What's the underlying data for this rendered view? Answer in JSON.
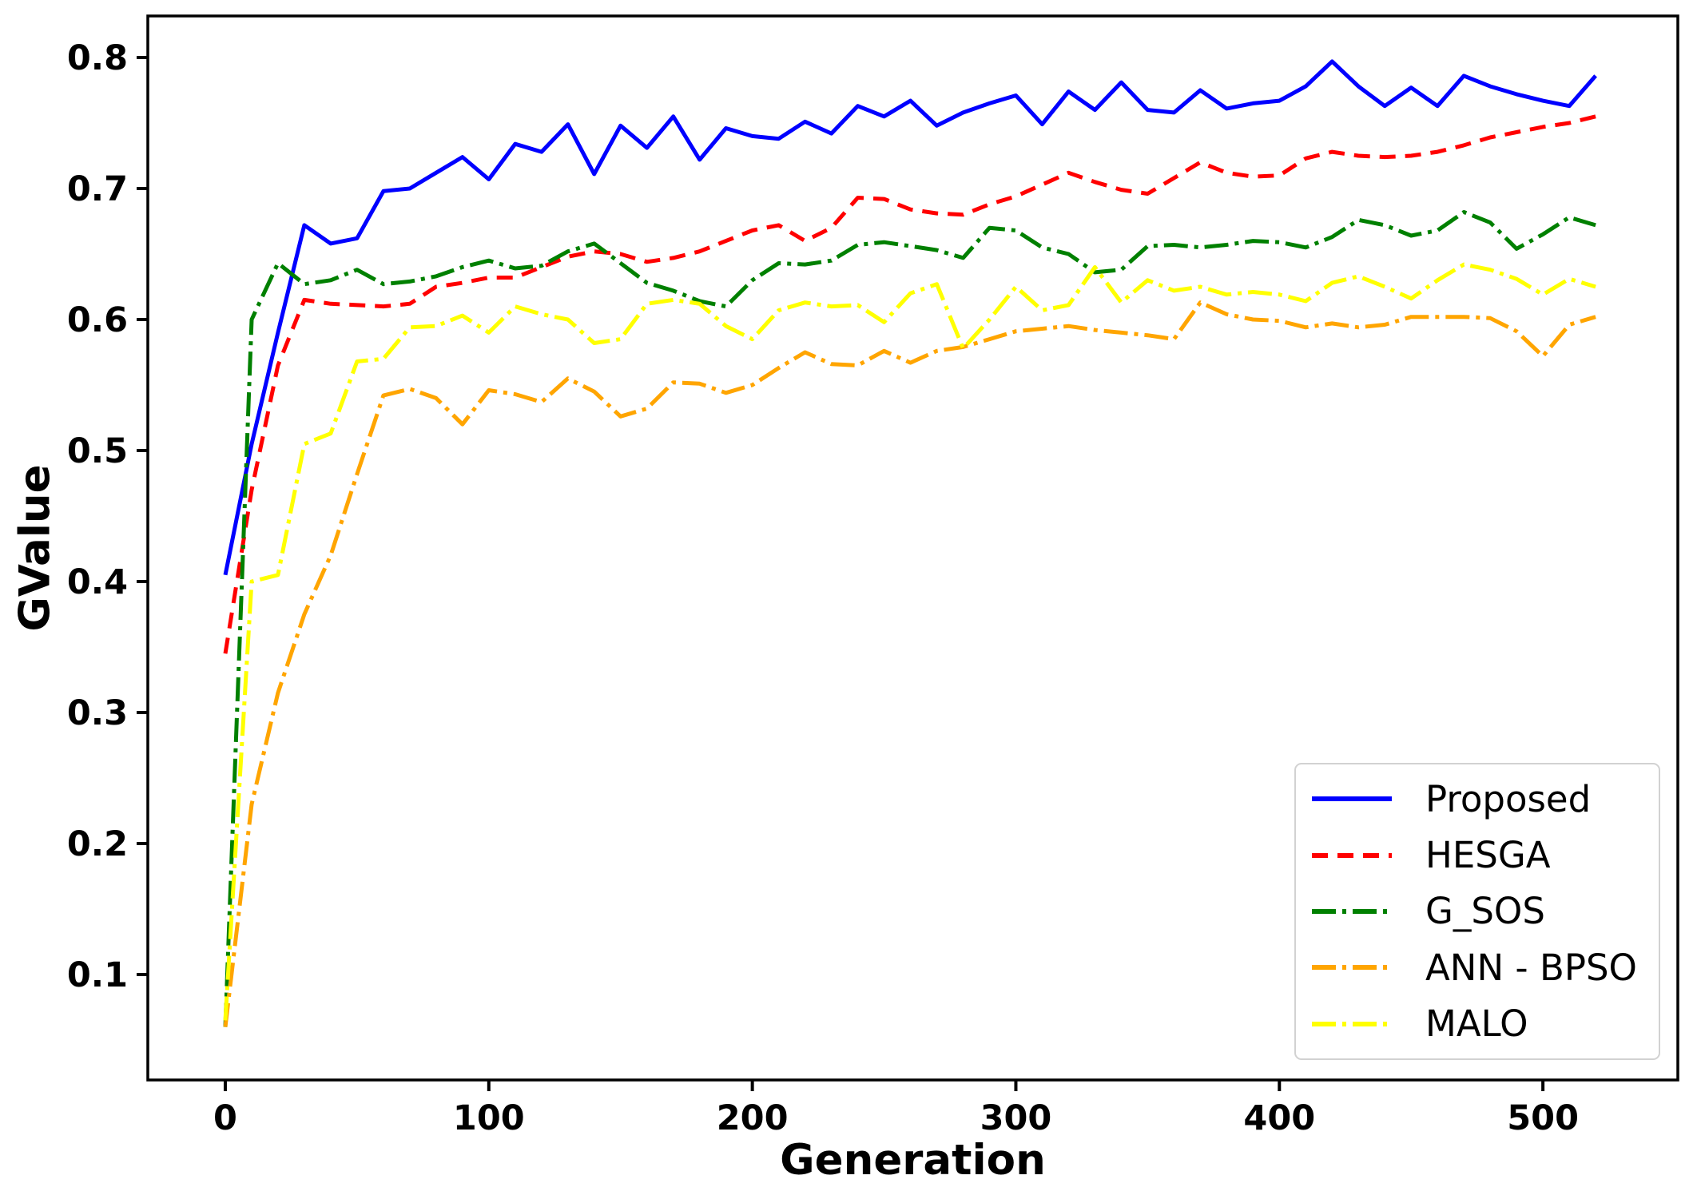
{
  "chart_data": {
    "type": "line",
    "title": "",
    "xlabel": "Generation",
    "ylabel": "GValue",
    "xlim": [
      -29.4,
      551.2
    ],
    "ylim": [
      0.0195,
      0.8317
    ],
    "xticks": {
      "values": [
        0,
        100,
        200,
        300,
        400,
        500
      ],
      "labels": [
        "0",
        "100",
        "200",
        "300",
        "400",
        "500"
      ]
    },
    "yticks": {
      "values": [
        0.1,
        0.2,
        0.3,
        0.4,
        0.5,
        0.6,
        0.7,
        0.8
      ],
      "labels": [
        "0.1",
        "0.2",
        "0.3",
        "0.4",
        "0.5",
        "0.6",
        "0.7",
        "0.8"
      ]
    },
    "grid": false,
    "legend_position": "lower right",
    "x": [
      0,
      10,
      20,
      30,
      40,
      50,
      60,
      70,
      80,
      90,
      100,
      110,
      120,
      130,
      140,
      150,
      160,
      170,
      180,
      190,
      200,
      210,
      220,
      230,
      240,
      250,
      260,
      270,
      280,
      290,
      300,
      310,
      320,
      330,
      340,
      350,
      360,
      370,
      380,
      390,
      400,
      410,
      420,
      430,
      440,
      450,
      460,
      470,
      480,
      490,
      500,
      510,
      520
    ],
    "series": [
      {
        "name": "Proposed",
        "color": "#0000ff",
        "line_style": "solid",
        "values": [
          0.405,
          0.505,
          0.59,
          0.672,
          0.658,
          0.662,
          0.698,
          0.7,
          0.712,
          0.724,
          0.707,
          0.734,
          0.728,
          0.749,
          0.711,
          0.748,
          0.731,
          0.755,
          0.722,
          0.746,
          0.74,
          0.738,
          0.751,
          0.742,
          0.763,
          0.755,
          0.767,
          0.748,
          0.758,
          0.765,
          0.771,
          0.749,
          0.774,
          0.76,
          0.781,
          0.76,
          0.758,
          0.775,
          0.761,
          0.765,
          0.767,
          0.778,
          0.797,
          0.778,
          0.763,
          0.777,
          0.763,
          0.786,
          0.778,
          0.772,
          0.767,
          0.763,
          0.786
        ]
      },
      {
        "name": "HESGA",
        "color": "#ff0000",
        "line_style": "dashed",
        "values": [
          0.345,
          0.47,
          0.565,
          0.615,
          0.612,
          0.611,
          0.61,
          0.612,
          0.625,
          0.628,
          0.632,
          0.632,
          0.64,
          0.648,
          0.652,
          0.65,
          0.644,
          0.647,
          0.652,
          0.66,
          0.668,
          0.672,
          0.66,
          0.67,
          0.693,
          0.692,
          0.684,
          0.681,
          0.68,
          0.688,
          0.694,
          0.703,
          0.712,
          0.705,
          0.699,
          0.696,
          0.708,
          0.72,
          0.712,
          0.709,
          0.71,
          0.723,
          0.728,
          0.725,
          0.724,
          0.725,
          0.728,
          0.733,
          0.739,
          0.743,
          0.747,
          0.75,
          0.755
        ]
      },
      {
        "name": "G_SOS",
        "color": "#008000",
        "line_style": "dashdot",
        "values": [
          0.06,
          0.6,
          0.643,
          0.627,
          0.63,
          0.638,
          0.627,
          0.629,
          0.633,
          0.64,
          0.645,
          0.639,
          0.641,
          0.652,
          0.658,
          0.643,
          0.628,
          0.622,
          0.614,
          0.61,
          0.63,
          0.643,
          0.642,
          0.645,
          0.657,
          0.659,
          0.656,
          0.653,
          0.647,
          0.67,
          0.668,
          0.655,
          0.65,
          0.636,
          0.638,
          0.656,
          0.657,
          0.655,
          0.657,
          0.66,
          0.659,
          0.655,
          0.663,
          0.676,
          0.672,
          0.664,
          0.668,
          0.682,
          0.674,
          0.654,
          0.665,
          0.678,
          0.672
        ]
      },
      {
        "name": "ANN - BPSO",
        "color": "#ffa500",
        "line_style": "dashdot",
        "values": [
          0.06,
          0.23,
          0.315,
          0.375,
          0.42,
          0.482,
          0.542,
          0.547,
          0.54,
          0.52,
          0.546,
          0.543,
          0.537,
          0.555,
          0.545,
          0.526,
          0.532,
          0.552,
          0.551,
          0.544,
          0.55,
          0.563,
          0.575,
          0.566,
          0.565,
          0.576,
          0.567,
          0.576,
          0.579,
          0.585,
          0.591,
          0.593,
          0.595,
          0.592,
          0.59,
          0.588,
          0.585,
          0.613,
          0.604,
          0.6,
          0.599,
          0.594,
          0.597,
          0.594,
          0.596,
          0.602,
          0.602,
          0.602,
          0.601,
          0.591,
          0.572,
          0.596,
          0.602
        ]
      },
      {
        "name": "MALO",
        "color": "#ffff00",
        "line_style": "dashdot",
        "values": [
          0.065,
          0.4,
          0.405,
          0.505,
          0.513,
          0.568,
          0.57,
          0.594,
          0.595,
          0.603,
          0.59,
          0.61,
          0.604,
          0.6,
          0.582,
          0.585,
          0.612,
          0.615,
          0.612,
          0.595,
          0.585,
          0.607,
          0.613,
          0.61,
          0.611,
          0.598,
          0.62,
          0.627,
          0.578,
          0.6,
          0.625,
          0.607,
          0.611,
          0.64,
          0.613,
          0.63,
          0.622,
          0.625,
          0.619,
          0.621,
          0.619,
          0.614,
          0.628,
          0.633,
          0.625,
          0.616,
          0.63,
          0.642,
          0.638,
          0.631,
          0.619,
          0.631,
          0.625
        ]
      }
    ]
  }
}
